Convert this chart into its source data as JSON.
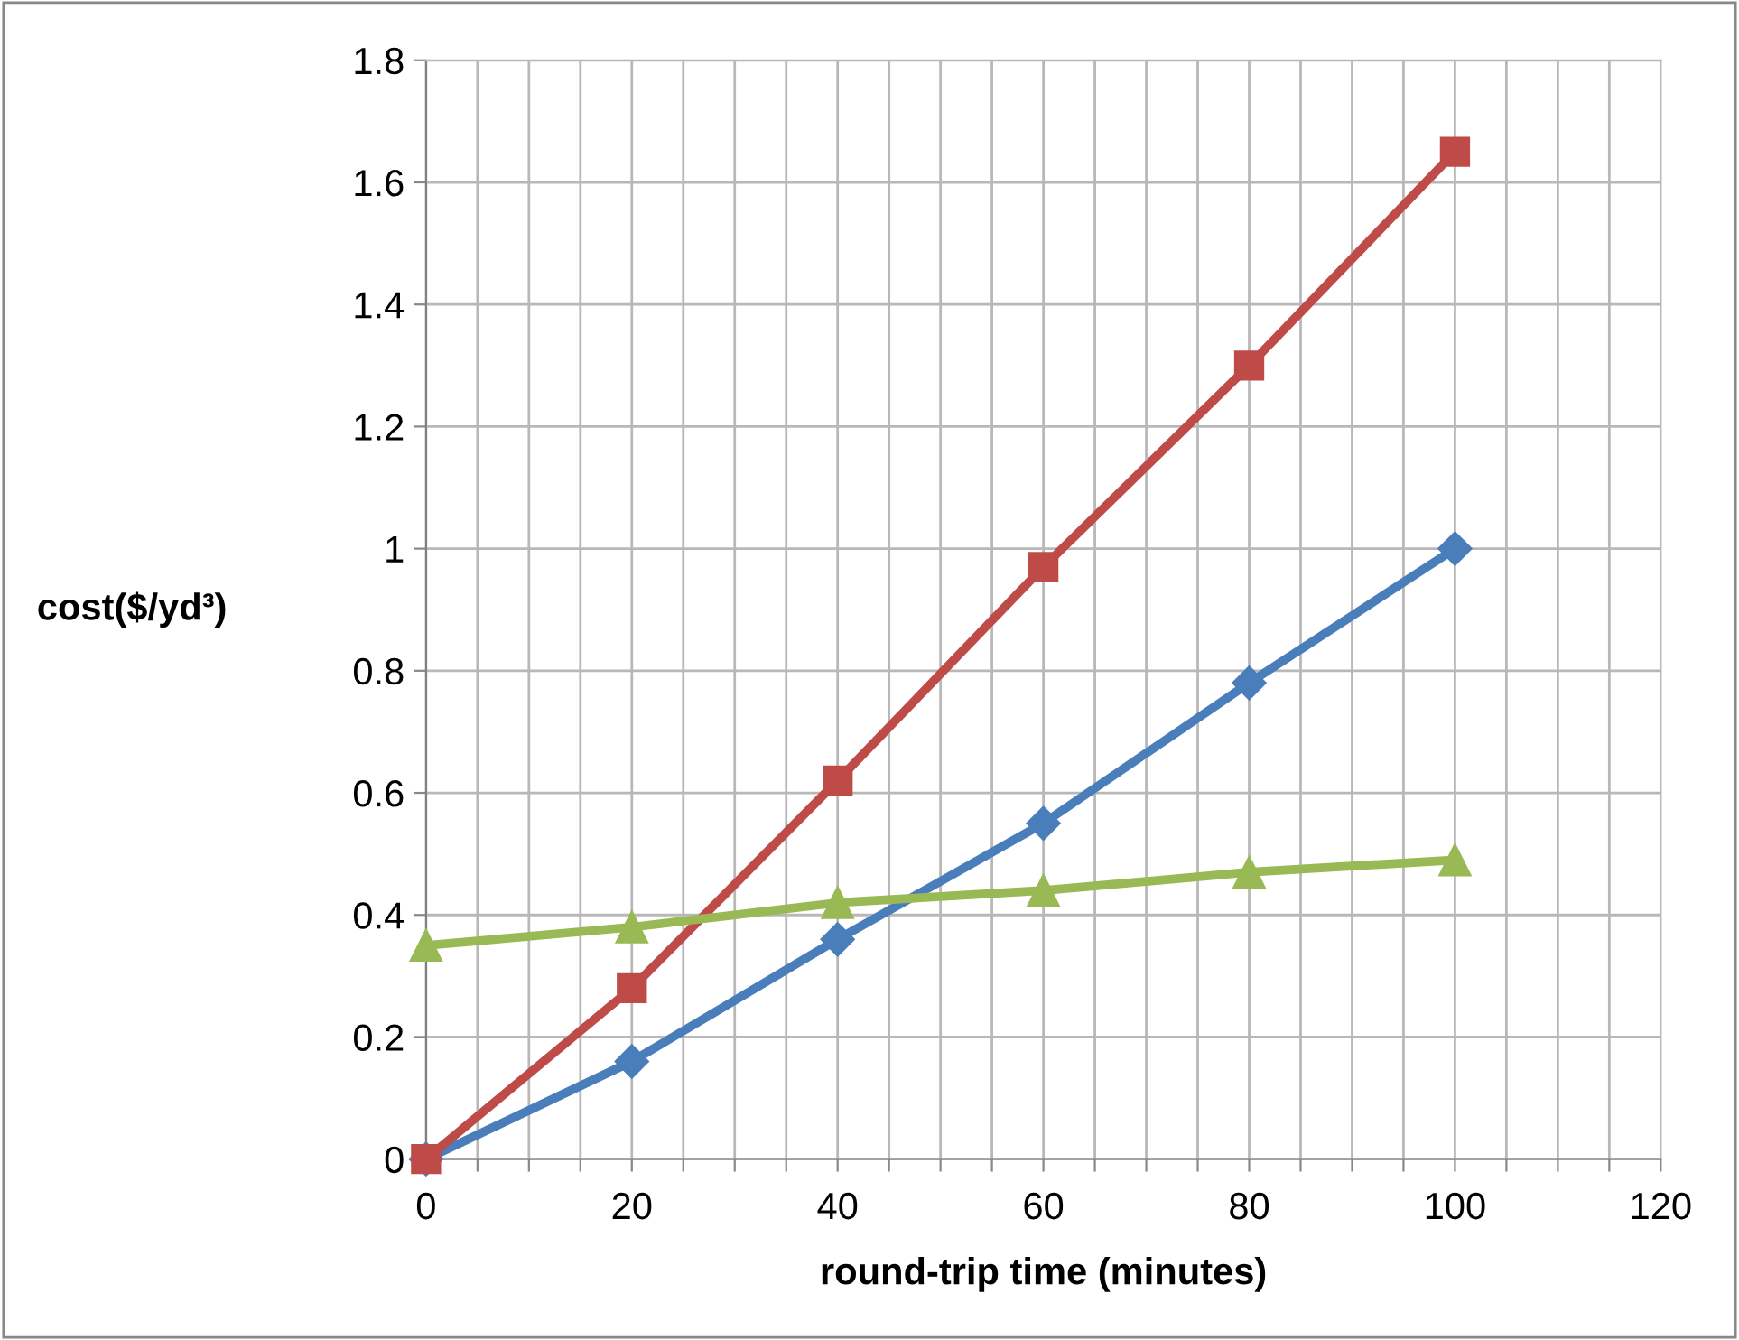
{
  "chart_data": {
    "type": "line",
    "xlabel": "round-trip time (minutes)",
    "ylabel": "cost($/yd³)",
    "x": [
      0,
      20,
      40,
      60,
      80,
      100
    ],
    "series": [
      {
        "color": "#4a7ebb",
        "marker": "diamond",
        "values": [
          0,
          0.16,
          0.36,
          0.55,
          0.78,
          1.0
        ]
      },
      {
        "color": "#be4b48",
        "marker": "square",
        "values": [
          0,
          0.28,
          0.62,
          0.97,
          1.3,
          1.65
        ]
      },
      {
        "color": "#98b954",
        "marker": "triangle",
        "values": [
          0.35,
          0.38,
          0.42,
          0.44,
          0.47,
          0.49
        ]
      }
    ],
    "xlim": [
      0,
      120
    ],
    "xticks": [
      0,
      {
        "value": 5,
        "label": null
      },
      {
        "value": 10,
        "label": null
      },
      {
        "value": 15,
        "label": null
      },
      20,
      {
        "value": 25,
        "label": null
      },
      {
        "value": 30,
        "label": null
      },
      {
        "value": 35,
        "label": null
      },
      40,
      {
        "value": 45,
        "label": null
      },
      {
        "value": 50,
        "label": null
      },
      {
        "value": 55,
        "label": null
      },
      60,
      {
        "value": 65,
        "label": null
      },
      {
        "value": 70,
        "label": null
      },
      {
        "value": 75,
        "label": null
      },
      80,
      {
        "value": 85,
        "label": null
      },
      {
        "value": 90,
        "label": null
      },
      {
        "value": 95,
        "label": null
      },
      100,
      {
        "value": 105,
        "label": null
      },
      {
        "value": 110,
        "label": null
      },
      {
        "value": 115,
        "label": null
      },
      120
    ],
    "ylim": [
      0,
      1.8
    ],
    "yticks": [
      0,
      0.2,
      0.4,
      0.6,
      0.8,
      1,
      1.2,
      1.4,
      1.6,
      1.8
    ],
    "grid": true,
    "legend": false,
    "line_style": "solid"
  }
}
